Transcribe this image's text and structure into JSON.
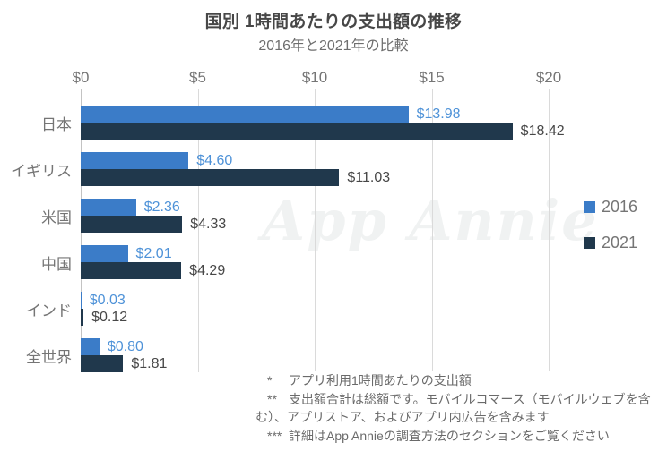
{
  "header": {
    "title": "国別 1時間あたりの支出額の推移",
    "subtitle": "2016年と2021年の比較"
  },
  "watermark": "App Annie",
  "chart_data": {
    "type": "bar",
    "orientation": "horizontal",
    "title": "国別 1時間あたりの支出額の推移",
    "subtitle": "2016年と2021年の比較",
    "categories": [
      "日本",
      "イギリス",
      "米国",
      "中国",
      "インド",
      "全世界"
    ],
    "series": [
      {
        "name": "2016",
        "color": "#3b7cc8",
        "label_color": "#4e92d8",
        "values": [
          13.98,
          4.6,
          2.36,
          2.01,
          0.03,
          0.8
        ]
      },
      {
        "name": "2021",
        "color": "#20384c",
        "label_color": "#474747",
        "values": [
          18.42,
          11.03,
          4.33,
          4.29,
          0.12,
          1.81
        ]
      }
    ],
    "value_prefix": "$",
    "value_decimals": 2,
    "xlim": [
      0,
      20
    ],
    "x_ticks": [
      "$0",
      "$5",
      "$10",
      "$15",
      "$20"
    ],
    "grid": "vertical",
    "legend_position": "right"
  },
  "legend": {
    "items": [
      {
        "label": "2016",
        "color": "#3b7cc8"
      },
      {
        "label": "2021",
        "color": "#20384c"
      }
    ]
  },
  "footnotes": [
    {
      "marker": "*",
      "text": "アプリ利用1時間あたりの支出額"
    },
    {
      "marker": "**",
      "text": "支出額合計は総額です。モバイルコマース（モバイルウェブを含む）、アプリストア、およびアプリ内広告を含みます"
    },
    {
      "marker": "***",
      "text": "詳細はApp Annieの調査方法のセクションをご覧ください"
    }
  ]
}
